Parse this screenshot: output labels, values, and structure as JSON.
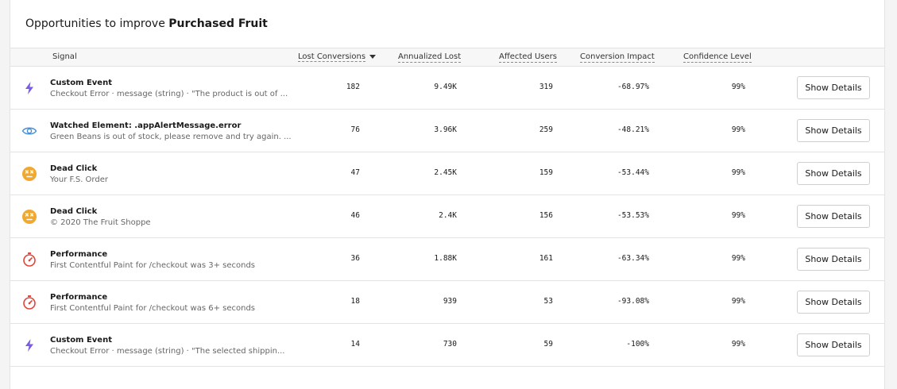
{
  "title": {
    "prefix": "Opportunities to improve",
    "subject": "Purchased Fruit"
  },
  "columns": {
    "signal": "Signal",
    "lost_conversions": "Lost Conversions",
    "annualized_lost": "Annualized Lost",
    "affected_users": "Affected Users",
    "conversion_impact": "Conversion Impact",
    "confidence_level": "Confidence Level"
  },
  "sort": {
    "column": "lost_conversions",
    "direction": "descending"
  },
  "colors": {
    "custom_event": "#7b5ce0",
    "watched": "#4a90d9",
    "dead_click": "#f0a830",
    "performance": "#e0443a"
  },
  "rows": [
    {
      "icon": "lightning-bolt-icon",
      "name": "Custom Event",
      "desc": "Checkout Error · message (string) · \"The product is out of ...",
      "lost": "182",
      "annualized": "9.49K",
      "users": "319",
      "impact": "-68.97%",
      "confidence": "99%",
      "action": "Show Details"
    },
    {
      "icon": "eye-icon",
      "name": "Watched Element: .appAlertMessage.error",
      "desc": "Green Beans is out of stock, please remove and try again. ...",
      "lost": "76",
      "annualized": "3.96K",
      "users": "259",
      "impact": "-48.21%",
      "confidence": "99%",
      "action": "Show Details"
    },
    {
      "icon": "dead-face-icon",
      "name": "Dead Click",
      "desc": "Your F.S. Order",
      "lost": "47",
      "annualized": "2.45K",
      "users": "159",
      "impact": "-53.44%",
      "confidence": "99%",
      "action": "Show Details"
    },
    {
      "icon": "dead-face-icon",
      "name": "Dead Click",
      "desc": "© 2020 The Fruit Shoppe",
      "lost": "46",
      "annualized": "2.4K",
      "users": "156",
      "impact": "-53.53%",
      "confidence": "99%",
      "action": "Show Details"
    },
    {
      "icon": "stopwatch-icon",
      "name": "Performance",
      "desc": "First Contentful Paint for /checkout was 3+ seconds",
      "lost": "36",
      "annualized": "1.88K",
      "users": "161",
      "impact": "-63.34%",
      "confidence": "99%",
      "action": "Show Details"
    },
    {
      "icon": "stopwatch-icon",
      "name": "Performance",
      "desc": "First Contentful Paint for /checkout was 6+ seconds",
      "lost": "18",
      "annualized": "939",
      "users": "53",
      "impact": "-93.08%",
      "confidence": "99%",
      "action": "Show Details"
    },
    {
      "icon": "lightning-bolt-icon",
      "name": "Custom Event",
      "desc": "Checkout Error · message (string) · \"The selected shippin...",
      "lost": "14",
      "annualized": "730",
      "users": "59",
      "impact": "-100%",
      "confidence": "99%",
      "action": "Show Details"
    }
  ]
}
